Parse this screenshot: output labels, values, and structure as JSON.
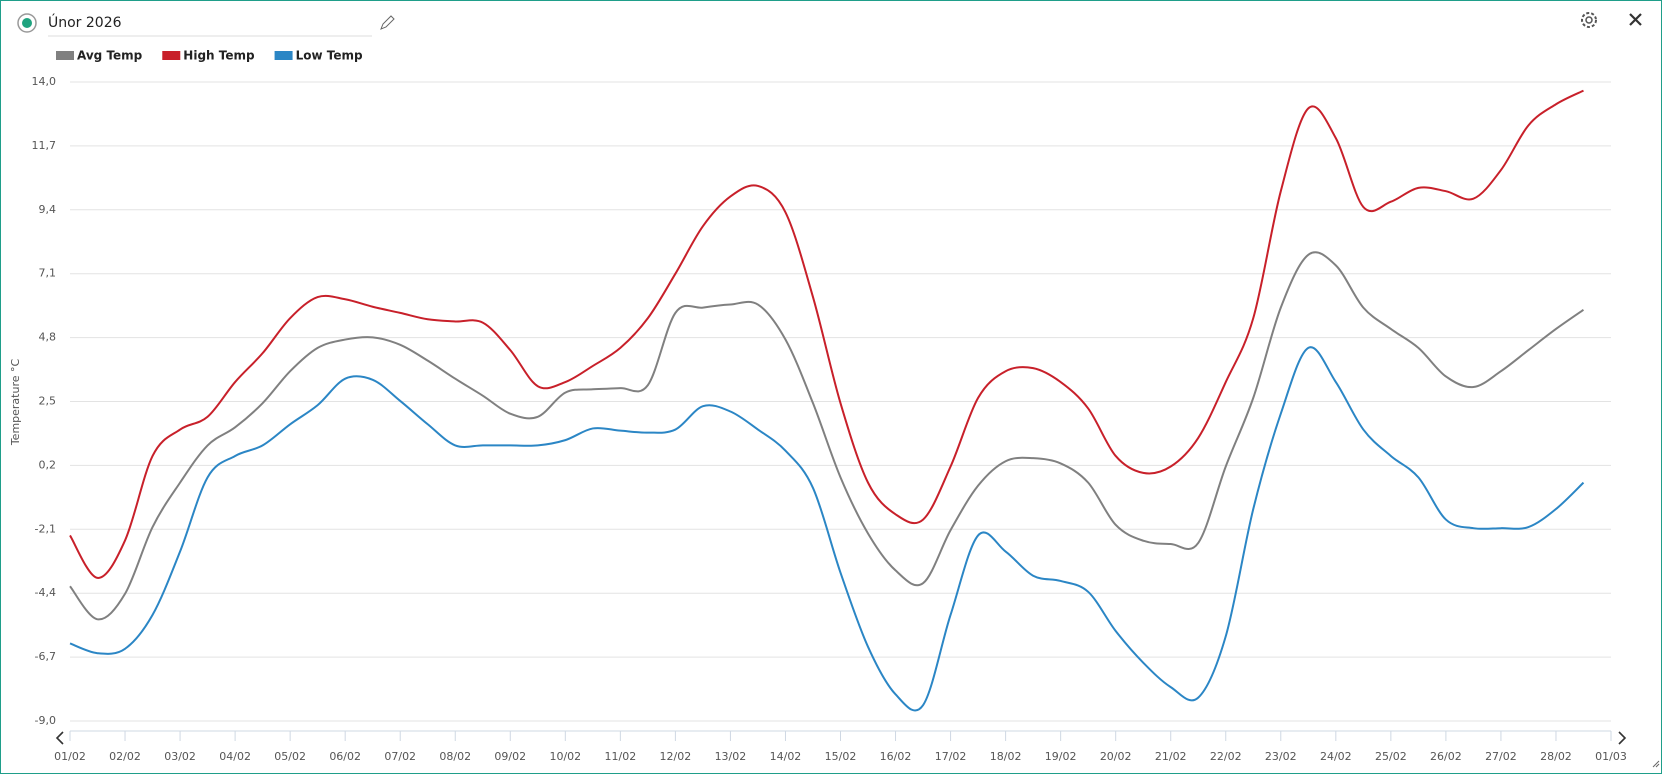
{
  "chart_data": {
    "type": "line",
    "title": "Únor 2026",
    "y_label": "Temperature °C",
    "x": [
      0,
      0.5,
      1,
      1.5,
      2,
      2.5,
      3,
      3.5,
      4,
      4.5,
      5,
      5.5,
      6,
      6.5,
      7,
      7.5,
      8,
      8.5,
      9,
      9.5,
      10,
      10.5,
      11,
      11.5,
      12,
      12.5,
      13,
      13.5,
      14,
      14.5,
      15,
      15.5,
      16,
      16.5,
      17,
      17.5,
      18,
      18.5,
      19,
      19.5,
      20,
      20.5,
      21,
      21.5,
      22,
      22.5,
      23,
      23.5,
      24,
      24.5,
      25,
      25.5,
      26,
      26.5,
      27,
      27.5
    ],
    "series": [
      {
        "name": "Avg Temp",
        "color": "#808080",
        "values": [
          -4.15,
          -5.34,
          -4.42,
          -2.02,
          -0.42,
          0.92,
          1.57,
          2.44,
          3.59,
          4.43,
          4.73,
          4.81,
          4.54,
          3.97,
          3.32,
          2.71,
          2.06,
          1.95,
          2.82,
          2.94,
          2.98,
          3.09,
          5.69,
          5.88,
          5.99,
          5.99,
          4.73,
          2.44,
          -0.23,
          -2.25,
          -3.58,
          -4.04,
          -2.13,
          -0.53,
          0.35,
          0.46,
          0.27,
          -0.42,
          -1.94,
          -2.51,
          -2.63,
          -2.59,
          0.16,
          2.63,
          5.88,
          7.78,
          7.4,
          5.88,
          5.11,
          4.43,
          3.4,
          3.02,
          3.59,
          4.35,
          5.11,
          5.8
        ]
      },
      {
        "name": "High Temp",
        "color": "#c8202a",
        "values": [
          -2.32,
          -3.85,
          -2.5,
          0.54,
          1.49,
          1.95,
          3.2,
          4.24,
          5.5,
          6.26,
          6.18,
          5.91,
          5.69,
          5.46,
          5.38,
          5.34,
          4.35,
          3.05,
          3.2,
          3.78,
          4.43,
          5.5,
          7.1,
          8.81,
          9.88,
          10.26,
          9.31,
          6.26,
          2.44,
          -0.42,
          -1.56,
          -1.75,
          0.16,
          2.63,
          3.59,
          3.7,
          3.2,
          2.25,
          0.54,
          -0.07,
          0.16,
          1.19,
          3.2,
          5.5,
          10.07,
          13.05,
          11.98,
          9.5,
          9.69,
          10.19,
          10.07,
          9.8,
          10.83,
          12.44,
          13.2,
          13.69
        ]
      },
      {
        "name": "Low Temp",
        "color": "#2b86c5",
        "values": [
          -6.21,
          -6.56,
          -6.4,
          -5.18,
          -2.9,
          -0.23,
          0.54,
          0.92,
          1.68,
          2.37,
          3.32,
          3.28,
          2.52,
          1.68,
          0.92,
          0.92,
          0.92,
          0.92,
          1.11,
          1.53,
          1.45,
          1.38,
          1.49,
          2.33,
          2.14,
          1.49,
          0.73,
          -0.61,
          -3.66,
          -6.33,
          -8.04,
          -8.43,
          -5.18,
          -2.32,
          -2.9,
          -3.77,
          -3.96,
          -4.35,
          -5.76,
          -6.9,
          -7.78,
          -8.16,
          -5.95,
          -1.37,
          2.06,
          4.43,
          3.2,
          1.49,
          0.54,
          -0.23,
          -1.75,
          -2.06,
          -2.06,
          -2.02,
          -1.37,
          -0.42
        ]
      }
    ],
    "xlim": [
      0,
      28
    ],
    "xticks": [
      {
        "value": 0,
        "label": "01/02"
      },
      {
        "value": 1,
        "label": "02/02"
      },
      {
        "value": 2,
        "label": "03/02"
      },
      {
        "value": 3,
        "label": "04/02"
      },
      {
        "value": 4,
        "label": "05/02"
      },
      {
        "value": 5,
        "label": "06/02"
      },
      {
        "value": 6,
        "label": "07/02"
      },
      {
        "value": 7,
        "label": "08/02"
      },
      {
        "value": 8,
        "label": "09/02"
      },
      {
        "value": 9,
        "label": "10/02"
      },
      {
        "value": 10,
        "label": "11/02"
      },
      {
        "value": 11,
        "label": "12/02"
      },
      {
        "value": 12,
        "label": "13/02"
      },
      {
        "value": 13,
        "label": "14/02"
      },
      {
        "value": 14,
        "label": "15/02"
      },
      {
        "value": 15,
        "label": "16/02"
      },
      {
        "value": 16,
        "label": "17/02"
      },
      {
        "value": 17,
        "label": "18/02"
      },
      {
        "value": 18,
        "label": "19/02"
      },
      {
        "value": 19,
        "label": "20/02"
      },
      {
        "value": 20,
        "label": "21/02"
      },
      {
        "value": 21,
        "label": "22/02"
      },
      {
        "value": 22,
        "label": "23/02"
      },
      {
        "value": 23,
        "label": "24/02"
      },
      {
        "value": 24,
        "label": "25/02"
      },
      {
        "value": 25,
        "label": "26/02"
      },
      {
        "value": 26,
        "label": "27/02"
      },
      {
        "value": 27,
        "label": "28/02"
      },
      {
        "value": 28,
        "label": "01/03"
      }
    ],
    "ylim": [
      -9,
      14
    ],
    "yticks": [
      {
        "value": -9,
        "label": "-9,0"
      },
      {
        "value": -6.7,
        "label": "-6,7"
      },
      {
        "value": -4.4,
        "label": "-4,4"
      },
      {
        "value": -2.1,
        "label": "-2,1"
      },
      {
        "value": 0.2,
        "label": "0,2"
      },
      {
        "value": 2.5,
        "label": "2,5"
      },
      {
        "value": 4.8,
        "label": "4,8"
      },
      {
        "value": 7.1,
        "label": "7,1"
      },
      {
        "value": 9.4,
        "label": "9,4"
      },
      {
        "value": 11.7,
        "label": "11,7"
      },
      {
        "value": 14,
        "label": "14,0"
      }
    ],
    "grid": true
  }
}
